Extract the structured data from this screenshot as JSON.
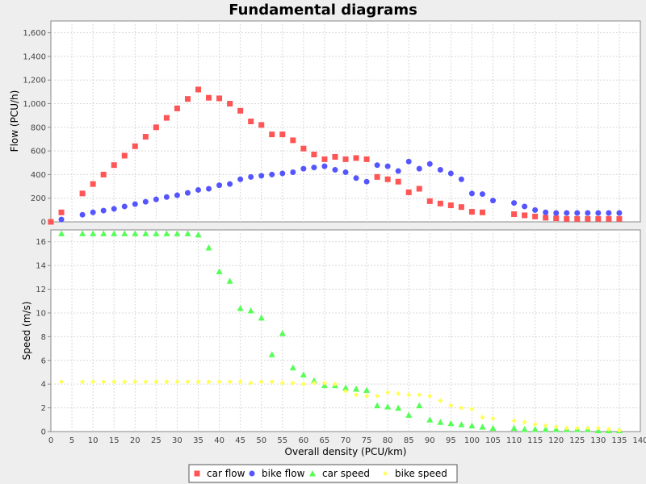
{
  "chart_data": {
    "type": "scatter",
    "title": "Fundamental diagrams",
    "xlabel": "Overall density (PCU/km)",
    "xlim": [
      0,
      140
    ],
    "xticks": [
      "0",
      "5",
      "10",
      "15",
      "20",
      "25",
      "30",
      "35",
      "40",
      "45",
      "50",
      "55",
      "60",
      "65",
      "70",
      "75",
      "80",
      "85",
      "90",
      "95",
      "100",
      "105",
      "110",
      "115",
      "120",
      "125",
      "130",
      "135",
      "140"
    ],
    "legend_position": "bottom-center",
    "grid": true,
    "panels": [
      {
        "ylabel": "Flow (PCU/h)",
        "ylim": [
          0,
          1700
        ],
        "yticks": [
          "0",
          "200",
          "400",
          "600",
          "800",
          "1,000",
          "1,200",
          "1,400",
          "1,600"
        ],
        "series": [
          {
            "name": "car flow",
            "color": "#ff5555",
            "marker": "square",
            "x": [
              0,
              2.5,
              7.5,
              10,
              12.5,
              15,
              17.5,
              20,
              22.5,
              25,
              27.5,
              30,
              32.5,
              35,
              37.5,
              40,
              42.5,
              45,
              47.5,
              50,
              52.5,
              55,
              57.5,
              60,
              62.5,
              65,
              67.5,
              70,
              72.5,
              75,
              77.5,
              80,
              82.5,
              85,
              87.5,
              90,
              92.5,
              95,
              97.5,
              100,
              102.5,
              110,
              112.5,
              115,
              117.5,
              120,
              122.5,
              125,
              127.5,
              130,
              132.5,
              135
            ],
            "y": [
              0,
              80,
              240,
              320,
              400,
              480,
              560,
              640,
              720,
              800,
              880,
              960,
              1040,
              1120,
              1050,
              1045,
              1000,
              940,
              850,
              820,
              740,
              740,
              690,
              620,
              570,
              530,
              550,
              530,
              540,
              530,
              380,
              360,
              340,
              250,
              280,
              175,
              155,
              140,
              125,
              85,
              80,
              65,
              55,
              45,
              35,
              30,
              25,
              25,
              25,
              25,
              25,
              25
            ]
          },
          {
            "name": "bike flow",
            "color": "#5555ff",
            "marker": "circle",
            "x": [
              2.5,
              7.5,
              10,
              12.5,
              15,
              17.5,
              20,
              22.5,
              25,
              27.5,
              30,
              32.5,
              35,
              37.5,
              40,
              42.5,
              45,
              47.5,
              50,
              52.5,
              55,
              57.5,
              60,
              62.5,
              65,
              67.5,
              70,
              72.5,
              75,
              77.5,
              80,
              82.5,
              85,
              87.5,
              90,
              92.5,
              95,
              97.5,
              100,
              102.5,
              105,
              110,
              112.5,
              115,
              117.5,
              120,
              122.5,
              125,
              127.5,
              130,
              132.5,
              135
            ],
            "y": [
              20,
              60,
              80,
              95,
              110,
              130,
              150,
              170,
              190,
              210,
              225,
              245,
              270,
              280,
              310,
              320,
              360,
              380,
              390,
              400,
              410,
              420,
              450,
              460,
              470,
              440,
              420,
              370,
              340,
              480,
              470,
              430,
              510,
              450,
              490,
              440,
              410,
              360,
              240,
              235,
              180,
              160,
              130,
              100,
              80,
              75,
              75,
              75,
              75,
              75,
              75,
              75
            ]
          }
        ]
      },
      {
        "ylabel": "Speed (m/s)",
        "ylim": [
          0,
          17
        ],
        "yticks": [
          "0",
          "2",
          "4",
          "6",
          "8",
          "10",
          "12",
          "14",
          "16"
        ],
        "series": [
          {
            "name": "car speed",
            "color": "#55ff55",
            "marker": "triangle",
            "x": [
              2.5,
              7.5,
              10,
              12.5,
              15,
              17.5,
              20,
              22.5,
              25,
              27.5,
              30,
              32.5,
              35,
              37.5,
              40,
              42.5,
              45,
              47.5,
              50,
              52.5,
              55,
              57.5,
              60,
              62.5,
              65,
              67.5,
              70,
              72.5,
              75,
              77.5,
              80,
              82.5,
              85,
              87.5,
              90,
              92.5,
              95,
              97.5,
              100,
              102.5,
              105,
              110,
              112.5,
              115,
              117.5,
              120,
              122.5,
              125,
              127.5,
              130,
              132.5,
              135
            ],
            "y": [
              16.7,
              16.7,
              16.7,
              16.7,
              16.7,
              16.7,
              16.7,
              16.7,
              16.7,
              16.7,
              16.7,
              16.7,
              16.6,
              15.5,
              13.5,
              12.7,
              10.4,
              10.2,
              9.6,
              6.5,
              8.3,
              5.4,
              4.8,
              4.3,
              3.9,
              3.9,
              3.7,
              3.6,
              3.5,
              2.2,
              2.1,
              2.0,
              1.4,
              2.2,
              1.0,
              0.8,
              0.7,
              0.6,
              0.5,
              0.4,
              0.3,
              0.3,
              0.2,
              0.2,
              0.2,
              0.2,
              0.2,
              0.2,
              0.2,
              0.1,
              0.1,
              0.1
            ]
          },
          {
            "name": "bike speed",
            "color": "#ffff55",
            "marker": "diamond",
            "x": [
              2.5,
              7.5,
              10,
              12.5,
              15,
              17.5,
              20,
              22.5,
              25,
              27.5,
              30,
              32.5,
              35,
              37.5,
              40,
              42.5,
              45,
              47.5,
              50,
              52.5,
              55,
              57.5,
              60,
              62.5,
              65,
              67.5,
              70,
              72.5,
              75,
              77.5,
              80,
              82.5,
              85,
              87.5,
              90,
              92.5,
              95,
              97.5,
              100,
              102.5,
              105,
              110,
              112.5,
              115,
              117.5,
              120,
              122.5,
              125,
              127.5,
              130,
              132.5,
              135
            ],
            "y": [
              4.2,
              4.2,
              4.2,
              4.2,
              4.2,
              4.2,
              4.2,
              4.2,
              4.2,
              4.2,
              4.2,
              4.2,
              4.2,
              4.2,
              4.2,
              4.2,
              4.2,
              4.1,
              4.2,
              4.2,
              4.1,
              4.1,
              4.0,
              4.1,
              4.1,
              4.0,
              3.4,
              3.1,
              3.0,
              3.0,
              3.3,
              3.2,
              3.1,
              3.1,
              3.0,
              2.6,
              2.2,
              2.0,
              1.9,
              1.2,
              1.1,
              0.9,
              0.8,
              0.6,
              0.5,
              0.4,
              0.3,
              0.3,
              0.3,
              0.3,
              0.2,
              0.1
            ]
          }
        ]
      }
    ]
  }
}
